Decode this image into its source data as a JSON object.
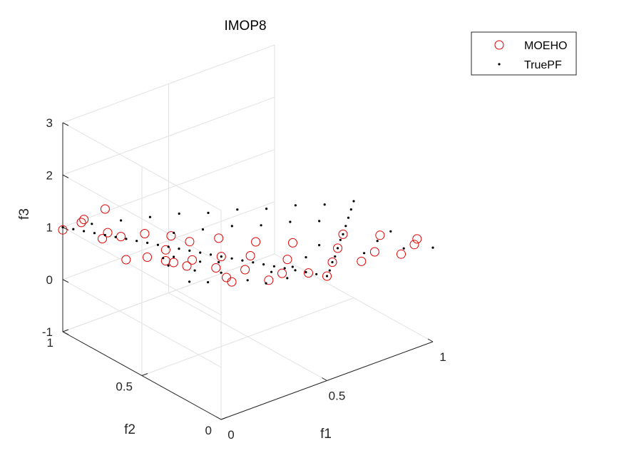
{
  "chart_data": {
    "type": "scatter",
    "title": "IMOP8",
    "xlabel": "f1",
    "ylabel": "f2",
    "zlabel": "f3",
    "xlim": [
      0,
      1
    ],
    "ylim": [
      0,
      1
    ],
    "zlim": [
      -1,
      3
    ],
    "x_ticks": [
      "0",
      "0.5",
      "1"
    ],
    "y_ticks": [
      "0",
      "0.5",
      "1"
    ],
    "z_ticks": [
      "-1",
      "0",
      "1",
      "2",
      "3"
    ],
    "grid": true,
    "legend_position": "top-right",
    "series": [
      {
        "name": "MOEHO",
        "marker": "circle",
        "color": "#e00000",
        "points": [
          [
            0.0,
            1.0,
            0.95
          ],
          [
            0.05,
            0.95,
            1.1
          ],
          [
            0.1,
            1.0,
            1.0
          ],
          [
            0.2,
            1.0,
            1.05
          ],
          [
            0.0,
            0.75,
            1.2
          ],
          [
            0.05,
            0.7,
            1.25
          ],
          [
            0.1,
            0.85,
            1.0
          ],
          [
            0.0,
            0.6,
            1.05
          ],
          [
            0.1,
            0.6,
            0.95
          ],
          [
            0.2,
            0.75,
            1.0
          ],
          [
            0.15,
            0.55,
            1.1
          ],
          [
            0.25,
            0.65,
            1.05
          ],
          [
            0.0,
            0.35,
            1.45
          ],
          [
            0.0,
            0.3,
            1.5
          ],
          [
            0.1,
            0.35,
            1.2
          ],
          [
            0.2,
            0.45,
            1.0
          ],
          [
            0.3,
            0.6,
            0.95
          ],
          [
            0.2,
            0.3,
            1.1
          ],
          [
            0.3,
            0.4,
            1.0
          ],
          [
            0.4,
            0.55,
            0.95
          ],
          [
            0.1,
            0.1,
            1.4
          ],
          [
            0.2,
            0.2,
            1.0
          ],
          [
            0.3,
            0.25,
            1.0
          ],
          [
            0.4,
            0.35,
            0.95
          ],
          [
            0.5,
            0.45,
            0.9
          ],
          [
            0.3,
            0.1,
            1.05
          ],
          [
            0.4,
            0.15,
            0.95
          ],
          [
            0.5,
            0.25,
            0.9
          ],
          [
            0.6,
            0.35,
            0.9
          ],
          [
            0.6,
            0.1,
            0.95
          ],
          [
            0.7,
            0.2,
            0.9
          ],
          [
            0.8,
            0.3,
            0.85
          ],
          [
            0.7,
            0.05,
            0.9
          ],
          [
            0.8,
            0.1,
            0.85
          ],
          [
            0.9,
            0.2,
            0.85
          ],
          [
            0.85,
            0.0,
            0.9
          ],
          [
            0.95,
            0.05,
            0.85
          ],
          [
            1.0,
            0.1,
            0.8
          ],
          [
            0.5,
            0.0,
            1.0
          ],
          [
            0.45,
            0.05,
            1.05
          ]
        ]
      },
      {
        "name": "TruePF",
        "marker": "dot",
        "color": "#000000",
        "points": [
          [
            0.0,
            1.0,
            1.0
          ],
          [
            0.02,
            0.96,
            1.0
          ],
          [
            0.04,
            0.92,
            1.0
          ],
          [
            0.06,
            0.88,
            1.0
          ],
          [
            0.08,
            0.84,
            1.0
          ],
          [
            0.1,
            0.8,
            1.0
          ],
          [
            0.12,
            0.76,
            1.0
          ],
          [
            0.14,
            0.72,
            1.0
          ],
          [
            0.16,
            0.68,
            1.0
          ],
          [
            0.18,
            0.64,
            1.0
          ],
          [
            0.2,
            0.6,
            1.0
          ],
          [
            0.22,
            0.56,
            1.0
          ],
          [
            0.24,
            0.52,
            1.0
          ],
          [
            0.26,
            0.48,
            1.0
          ],
          [
            0.28,
            0.44,
            1.0
          ],
          [
            0.3,
            0.4,
            1.0
          ],
          [
            0.32,
            0.36,
            1.0
          ],
          [
            0.34,
            0.32,
            1.0
          ],
          [
            0.36,
            0.28,
            1.0
          ],
          [
            0.38,
            0.24,
            1.0
          ],
          [
            0.4,
            0.2,
            1.0
          ],
          [
            0.42,
            0.16,
            1.0
          ],
          [
            0.44,
            0.12,
            1.0
          ],
          [
            0.46,
            0.08,
            1.0
          ],
          [
            0.48,
            0.04,
            1.0
          ],
          [
            0.5,
            0.0,
            1.0
          ],
          [
            0.55,
            0.05,
            0.95
          ],
          [
            0.6,
            0.1,
            0.95
          ],
          [
            0.65,
            0.15,
            0.9
          ],
          [
            0.7,
            0.2,
            0.9
          ],
          [
            0.75,
            0.25,
            0.9
          ],
          [
            0.8,
            0.3,
            0.85
          ],
          [
            0.85,
            0.35,
            0.85
          ],
          [
            0.9,
            0.4,
            0.85
          ],
          [
            0.95,
            0.45,
            0.85
          ],
          [
            1.0,
            0.5,
            0.85
          ],
          [
            0.1,
            0.95,
            1.0
          ],
          [
            0.2,
            0.9,
            1.0
          ],
          [
            0.3,
            0.85,
            1.0
          ],
          [
            0.4,
            0.8,
            1.0
          ],
          [
            0.5,
            0.75,
            0.95
          ],
          [
            0.6,
            0.7,
            0.95
          ],
          [
            0.7,
            0.65,
            0.9
          ],
          [
            0.8,
            0.6,
            0.9
          ],
          [
            0.9,
            0.55,
            0.85
          ],
          [
            0.05,
            0.4,
            1.2
          ],
          [
            0.1,
            0.3,
            1.2
          ],
          [
            0.15,
            0.2,
            1.25
          ],
          [
            0.2,
            0.1,
            1.2
          ],
          [
            0.25,
            0.05,
            1.15
          ],
          [
            0.35,
            0.05,
            1.1
          ],
          [
            0.45,
            0.15,
            1.0
          ],
          [
            0.55,
            0.2,
            0.95
          ],
          [
            0.65,
            0.25,
            0.95
          ],
          [
            0.75,
            0.1,
            0.9
          ],
          [
            0.85,
            0.15,
            0.9
          ],
          [
            0.95,
            0.2,
            0.85
          ],
          [
            1.0,
            0.0,
            0.8
          ],
          [
            0.9,
            0.05,
            0.85
          ],
          [
            0.3,
            0.7,
            0.95
          ],
          [
            0.4,
            0.65,
            0.95
          ],
          [
            0.5,
            0.6,
            0.95
          ],
          [
            0.6,
            0.55,
            0.9
          ],
          [
            0.7,
            0.5,
            0.9
          ],
          [
            0.8,
            0.45,
            0.85
          ],
          [
            0.15,
            0.5,
            1.05
          ],
          [
            0.25,
            0.35,
            1.05
          ],
          [
            0.35,
            0.15,
            1.05
          ],
          [
            0.05,
            0.15,
            1.3
          ],
          [
            0.0,
            0.2,
            1.3
          ],
          [
            0.1,
            0.5,
            1.1
          ],
          [
            0.2,
            0.4,
            1.05
          ]
        ]
      }
    ]
  }
}
